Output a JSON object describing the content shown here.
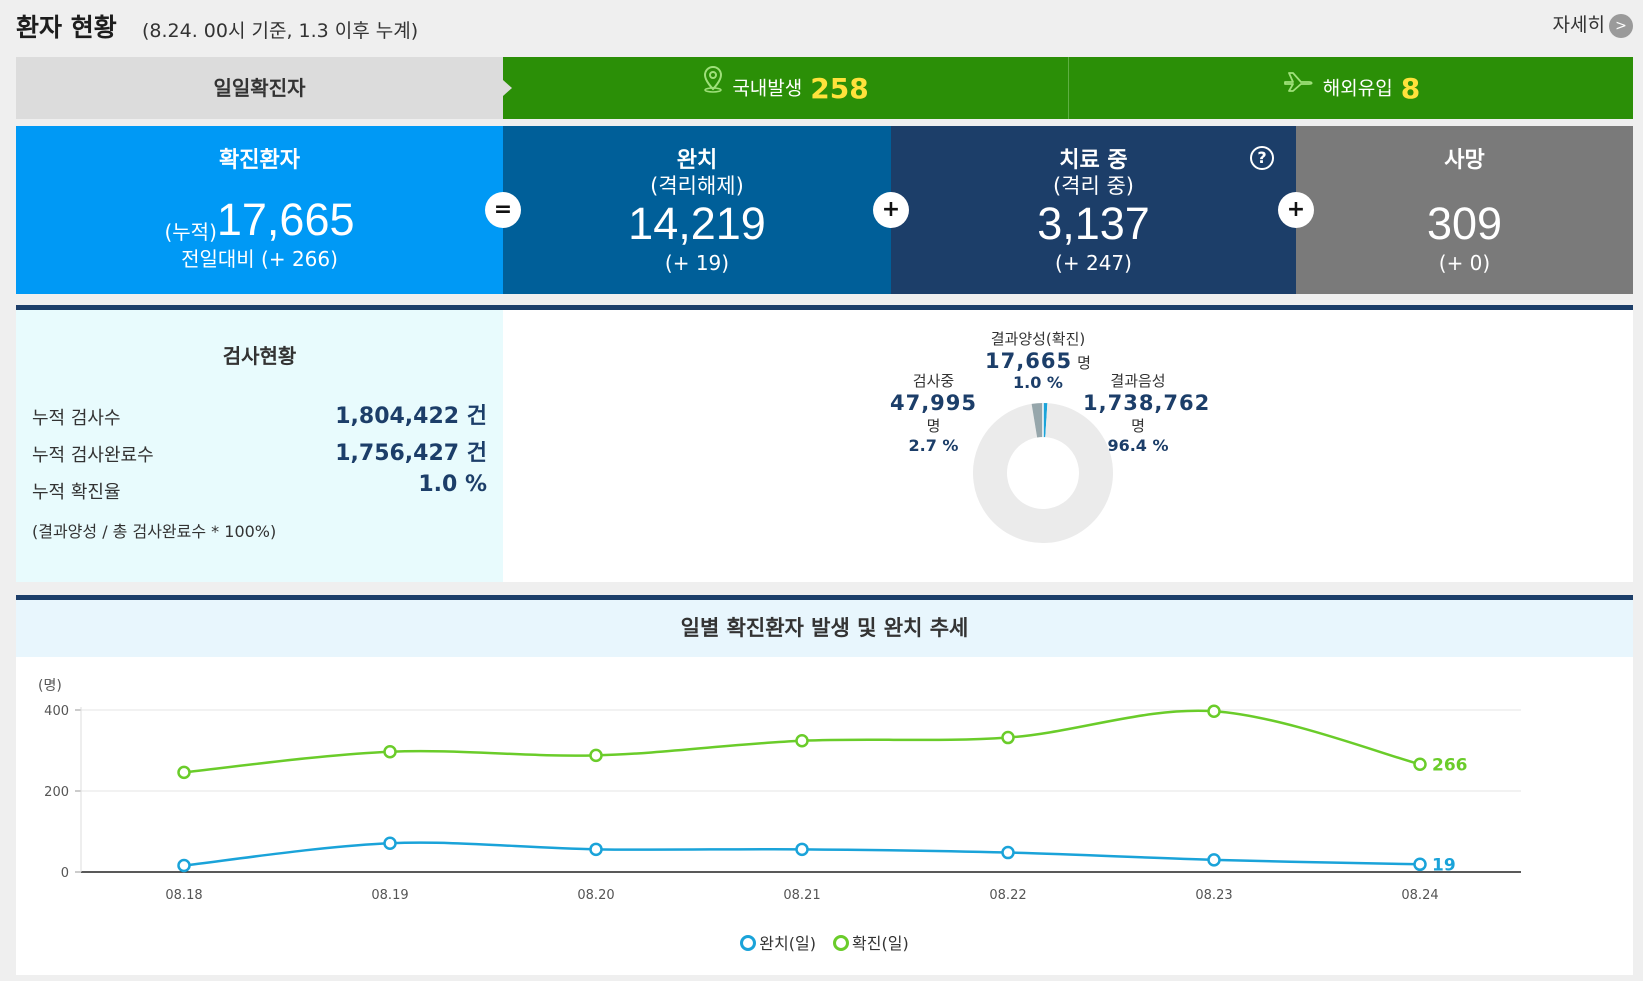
{
  "header": {
    "title": "환자 현황",
    "subtitle": "(8.24. 00시 기준, 1.3 이후 누계)",
    "more_label": "자세히",
    "more_arrow": ">"
  },
  "daily": {
    "label": "일일확진자",
    "domestic": {
      "label": "국내발생",
      "value": "258",
      "icon": "location-pin-icon"
    },
    "overseas": {
      "label": "해외유입",
      "value": "8",
      "icon": "airplane-icon"
    }
  },
  "stats": {
    "confirmed": {
      "title": "확진환자",
      "prefix": "(누적)",
      "value": "17,665",
      "diff": "전일대비 (+ 266)"
    },
    "released": {
      "title": "완치",
      "subtitle": "(격리해제)",
      "value": "14,219",
      "diff": "(+ 19)"
    },
    "treating": {
      "title": "치료 중",
      "subtitle": "(격리 중)",
      "value": "3,137",
      "diff": "(+ 247)",
      "help": "?"
    },
    "deaths": {
      "title": "사망",
      "value": "309",
      "diff": "(+ 0)"
    },
    "op_equal": "=",
    "op_plus": "+"
  },
  "tests": {
    "title": "검사현황",
    "rows": [
      {
        "label": "누적 검사수",
        "value": "1,804,422 건"
      },
      {
        "label": "누적 검사완료수",
        "value": "1,756,427 건"
      },
      {
        "label": "누적 확진율",
        "value": "1.0 %"
      }
    ],
    "note": "(결과양성 / 총 검사완료수 * 100%)",
    "donut": {
      "testing": {
        "label": "검사중",
        "value": "47,995",
        "unit": "명",
        "pct": "2.7 %",
        "fraction": 0.027,
        "color": "#96a6ab"
      },
      "positive": {
        "label": "결과양성(확진)",
        "value": "17,665",
        "unit": "명",
        "pct": "1.0 %",
        "fraction": 0.01,
        "color": "#1aa3d9"
      },
      "negative": {
        "label": "결과음성",
        "value": "1,738,762",
        "unit": "명",
        "pct": "96.4 %",
        "fraction": 0.964,
        "color": "#ebebeb"
      }
    }
  },
  "chart": {
    "title": "일별 확진환자 발생 및 완치 추세",
    "chart_data": {
      "type": "line",
      "x": [
        "08.18",
        "08.19",
        "08.20",
        "08.21",
        "08.22",
        "08.23",
        "08.24"
      ],
      "ylabel": "(명)",
      "ylim": [
        0,
        400
      ],
      "yticks": [
        0,
        200,
        400
      ],
      "grid": true,
      "legend": "bottom",
      "series": [
        {
          "name": "완치(일)",
          "color": "#1aa3d9",
          "values": [
            16,
            71,
            56,
            56,
            48,
            30,
            19
          ]
        },
        {
          "name": "확진(일)",
          "color": "#6acc2a",
          "values": [
            246,
            297,
            288,
            324,
            332,
            397,
            266
          ]
        }
      ],
      "end_labels": [
        "19",
        "266"
      ]
    }
  }
}
